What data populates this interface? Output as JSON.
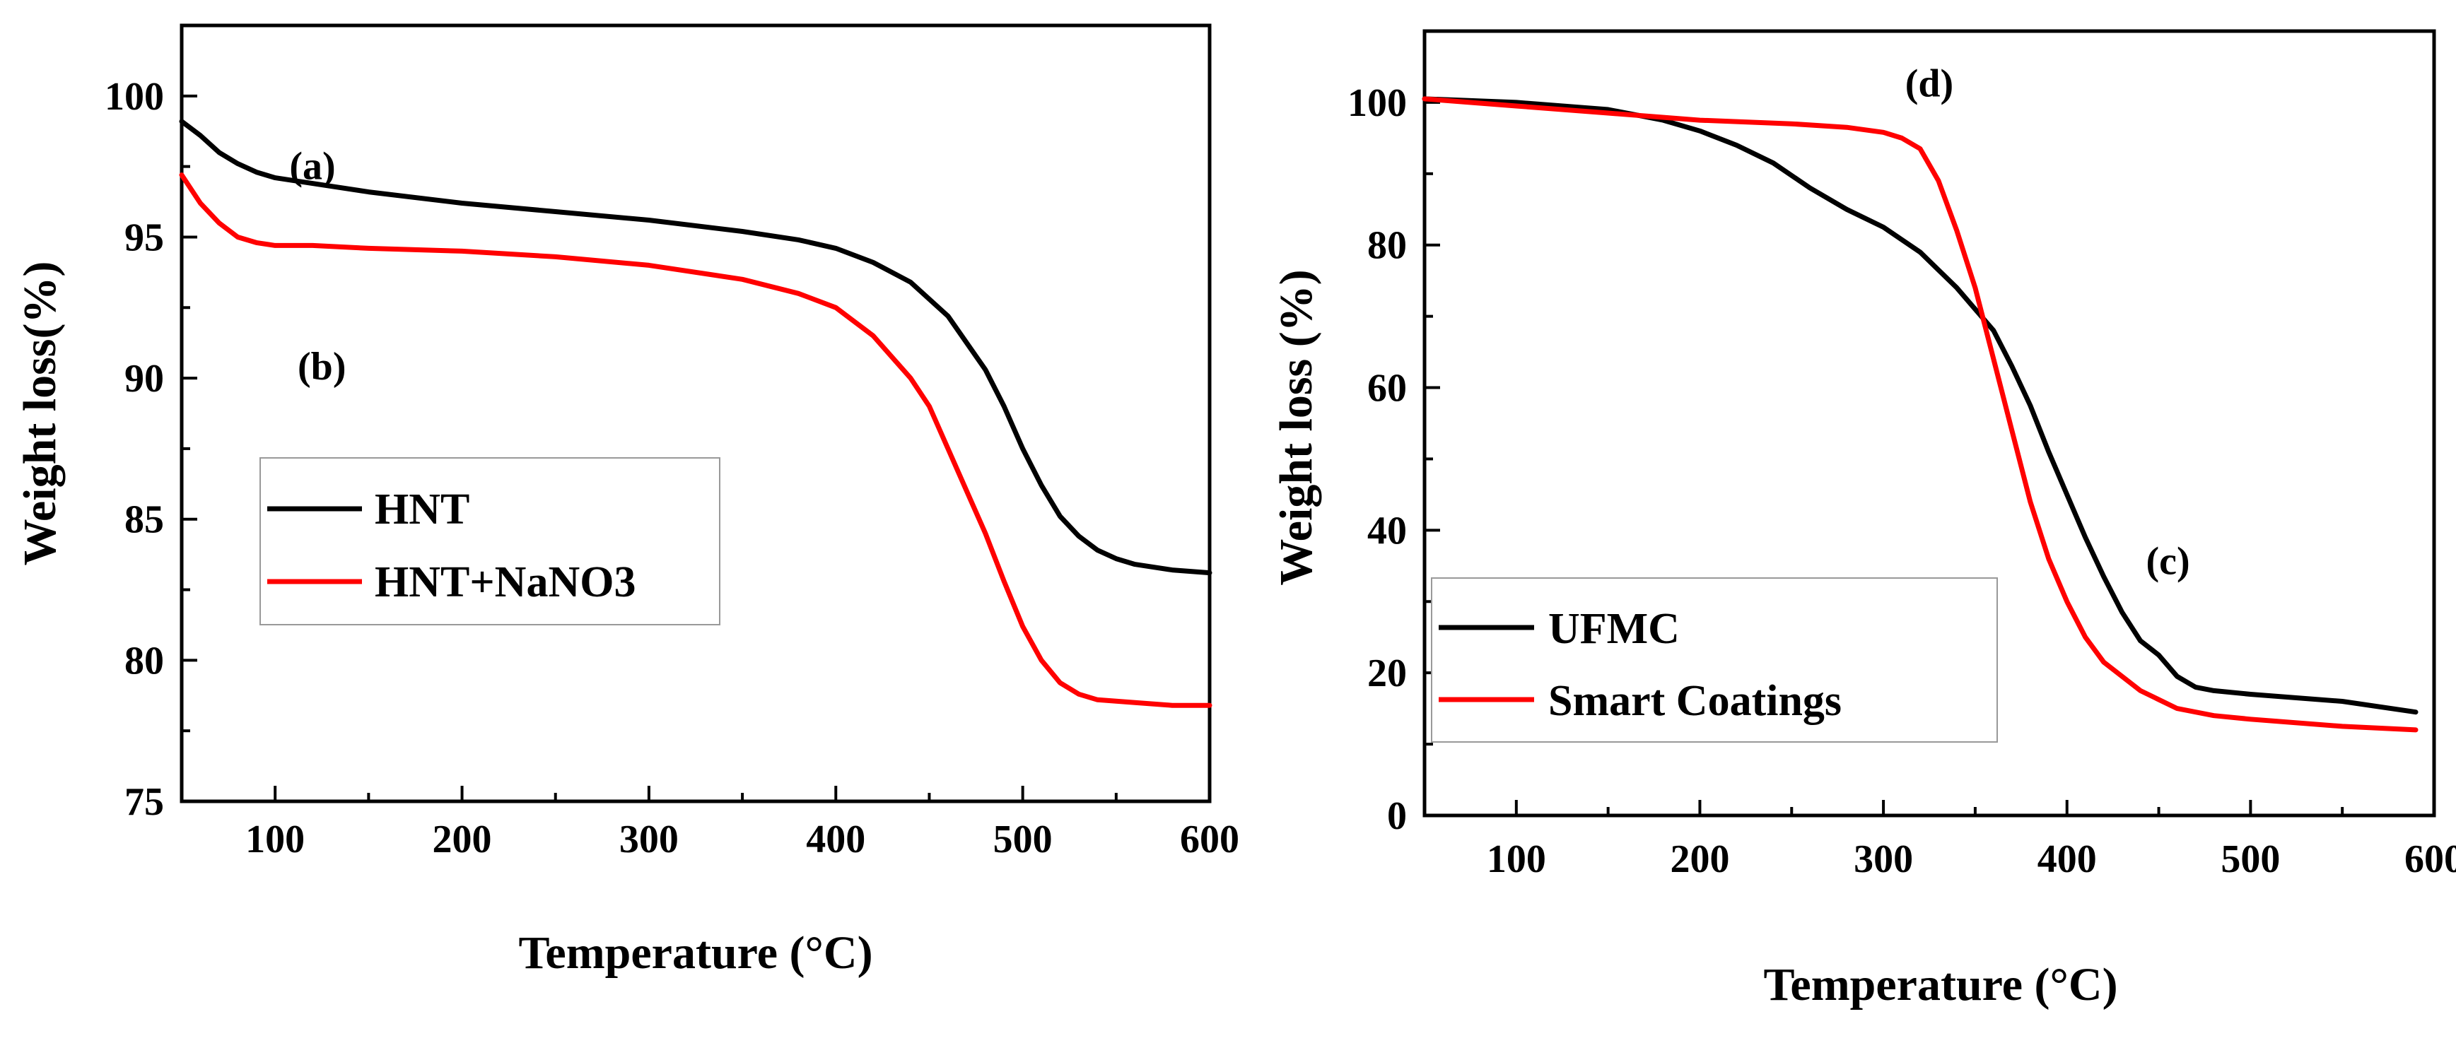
{
  "chart_data": [
    {
      "type": "line",
      "xlabel": "Temperature (°C)",
      "ylabel": "Weight loss(%)",
      "xlim": [
        50,
        600
      ],
      "ylim": [
        75,
        102.5
      ],
      "xticks": [
        100,
        200,
        300,
        400,
        500,
        600
      ],
      "yticks": [
        75,
        80,
        85,
        90,
        95,
        100
      ],
      "grid": false,
      "legend_position": "lower-left",
      "annotations": [
        {
          "text": "(a)",
          "x": 120,
          "y": 97.6
        },
        {
          "text": "(b)",
          "x": 125,
          "y": 90.5
        }
      ],
      "series": [
        {
          "name": "HNT",
          "color": "#000000",
          "x": [
            50,
            60,
            70,
            80,
            90,
            100,
            120,
            150,
            200,
            250,
            300,
            350,
            380,
            400,
            420,
            440,
            460,
            480,
            490,
            500,
            510,
            520,
            530,
            540,
            550,
            560,
            580,
            600
          ],
          "y": [
            99.1,
            98.6,
            98.0,
            97.6,
            97.3,
            97.1,
            96.9,
            96.6,
            96.2,
            95.9,
            95.6,
            95.2,
            94.9,
            94.6,
            94.1,
            93.4,
            92.2,
            90.3,
            89.0,
            87.5,
            86.2,
            85.1,
            84.4,
            83.9,
            83.6,
            83.4,
            83.2,
            83.1
          ]
        },
        {
          "name": "HNT+NaNO3",
          "color": "#ff0000",
          "x": [
            50,
            60,
            70,
            80,
            90,
            100,
            120,
            150,
            200,
            250,
            300,
            350,
            380,
            400,
            420,
            440,
            450,
            460,
            470,
            480,
            490,
            500,
            510,
            520,
            530,
            540,
            560,
            580,
            600
          ],
          "y": [
            97.2,
            96.2,
            95.5,
            95.0,
            94.8,
            94.7,
            94.7,
            94.6,
            94.5,
            94.3,
            94.0,
            93.5,
            93.0,
            92.5,
            91.5,
            90.0,
            89.0,
            87.5,
            86.0,
            84.5,
            82.8,
            81.2,
            80.0,
            79.2,
            78.8,
            78.6,
            78.5,
            78.4,
            78.4
          ]
        }
      ]
    },
    {
      "type": "line",
      "xlabel": "Temperature (°C)",
      "ylabel": "Weight loss (%)",
      "xlim": [
        50,
        600
      ],
      "ylim": [
        0,
        110
      ],
      "xticks": [
        100,
        200,
        300,
        400,
        500,
        600
      ],
      "yticks": [
        0,
        20,
        40,
        60,
        80,
        100
      ],
      "grid": false,
      "legend_position": "lower-left",
      "annotations": [
        {
          "text": "(d)",
          "x": 325,
          "y": 103
        },
        {
          "text": "(c)",
          "x": 455,
          "y": 36
        }
      ],
      "series": [
        {
          "name": "UFMC",
          "color": "#000000",
          "x": [
            50,
            100,
            150,
            180,
            200,
            220,
            240,
            260,
            280,
            300,
            320,
            340,
            360,
            370,
            380,
            390,
            400,
            410,
            420,
            430,
            440,
            450,
            460,
            470,
            480,
            500,
            550,
            590
          ],
          "y": [
            100.5,
            100,
            99,
            97.5,
            96,
            94,
            91.5,
            88,
            85,
            82.5,
            79,
            74,
            68,
            63,
            57.5,
            51,
            45,
            39,
            33.5,
            28.5,
            24.5,
            22.5,
            19.5,
            18,
            17.5,
            17,
            16,
            14.5
          ]
        },
        {
          "name": "Smart Coatings",
          "color": "#ff0000",
          "x": [
            50,
            100,
            150,
            200,
            250,
            280,
            300,
            310,
            320,
            330,
            340,
            350,
            360,
            370,
            380,
            390,
            400,
            410,
            420,
            440,
            460,
            480,
            500,
            550,
            590
          ],
          "y": [
            100.5,
            99.5,
            98.5,
            97.5,
            97,
            96.5,
            95.8,
            95,
            93.5,
            89,
            82,
            74,
            64,
            54,
            44,
            36,
            30,
            25,
            21.5,
            17.5,
            15,
            14,
            13.5,
            12.5,
            12
          ]
        }
      ]
    }
  ]
}
